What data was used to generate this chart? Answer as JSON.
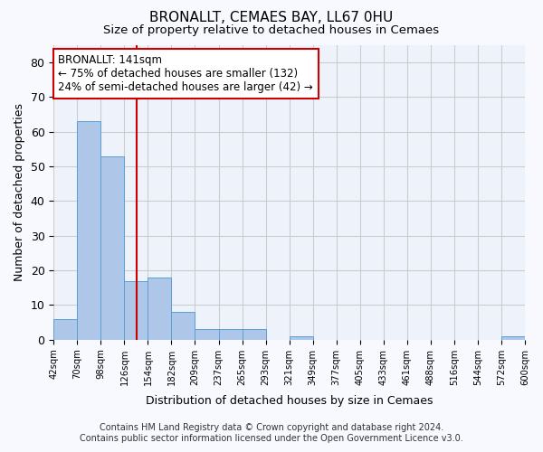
{
  "title1": "BRONALLT, CEMAES BAY, LL67 0HU",
  "title2": "Size of property relative to detached houses in Cemaes",
  "xlabel": "Distribution of detached houses by size in Cemaes",
  "ylabel": "Number of detached properties",
  "annotation_title": "BRONALLT: 141sqm",
  "annotation_line1": "← 75% of detached houses are smaller (132)",
  "annotation_line2": "24% of semi-detached houses are larger (42) →",
  "footer1": "Contains HM Land Registry data © Crown copyright and database right 2024.",
  "footer2": "Contains public sector information licensed under the Open Government Licence v3.0.",
  "bin_labels": [
    "42sqm",
    "70sqm",
    "98sqm",
    "126sqm",
    "154sqm",
    "182sqm",
    "209sqm",
    "237sqm",
    "265sqm",
    "293sqm",
    "321sqm",
    "349sqm",
    "377sqm",
    "405sqm",
    "433sqm",
    "461sqm",
    "488sqm",
    "516sqm",
    "544sqm",
    "572sqm",
    "600sqm"
  ],
  "bar_values": [
    6,
    63,
    53,
    17,
    18,
    8,
    3,
    3,
    3,
    0,
    1,
    0,
    0,
    0,
    0,
    0,
    0,
    0,
    0,
    1
  ],
  "bar_color": "#aec6e8",
  "bar_edge_color": "#5a9fd4",
  "vline_color": "#cc0000",
  "ylim": [
    0,
    85
  ],
  "yticks": [
    0,
    10,
    20,
    30,
    40,
    50,
    60,
    70,
    80
  ],
  "grid_color": "#cccccc",
  "bg_color": "#eef3fb",
  "annotation_box_color": "#ffffff",
  "annotation_box_edge": "#cc0000",
  "fig_bg_color": "#f8f8ff"
}
